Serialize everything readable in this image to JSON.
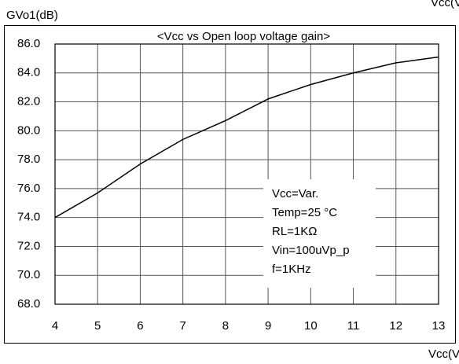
{
  "chart_data": {
    "type": "line",
    "title": "<Vcc vs Open loop voltage gain>",
    "ylabel": "GVo1(dB)",
    "xlabel": "Vcc(V)",
    "x": [
      4,
      5,
      6,
      7,
      8,
      9,
      10,
      11,
      12,
      13
    ],
    "series": [
      {
        "color": "#000000",
        "values": [
          74.0,
          75.7,
          77.7,
          79.4,
          80.7,
          82.2,
          83.2,
          84.0,
          84.7,
          85.1
        ]
      }
    ],
    "xlim": [
      4,
      13
    ],
    "xticks": [
      4,
      5,
      6,
      7,
      8,
      9,
      10,
      11,
      12,
      13
    ],
    "ylim": [
      68,
      86
    ],
    "yticks": [
      {
        "value": 68,
        "label": "68.0"
      },
      {
        "value": 70,
        "label": "70.0"
      },
      {
        "value": 72,
        "label": "72.0"
      },
      {
        "value": 74,
        "label": "74.0"
      },
      {
        "value": 76,
        "label": "76.0"
      },
      {
        "value": 78,
        "label": "78.0"
      },
      {
        "value": 80,
        "label": "80.0"
      },
      {
        "value": 82,
        "label": "82.0"
      },
      {
        "value": 84,
        "label": "84.0"
      },
      {
        "value": 86,
        "label": "86.0"
      }
    ],
    "grid": true,
    "annotations": [
      "Vcc=Var.",
      "Temp=25 °C",
      "RL=1KΩ",
      "Vin=100uVp_p",
      "f=1KHz"
    ]
  }
}
